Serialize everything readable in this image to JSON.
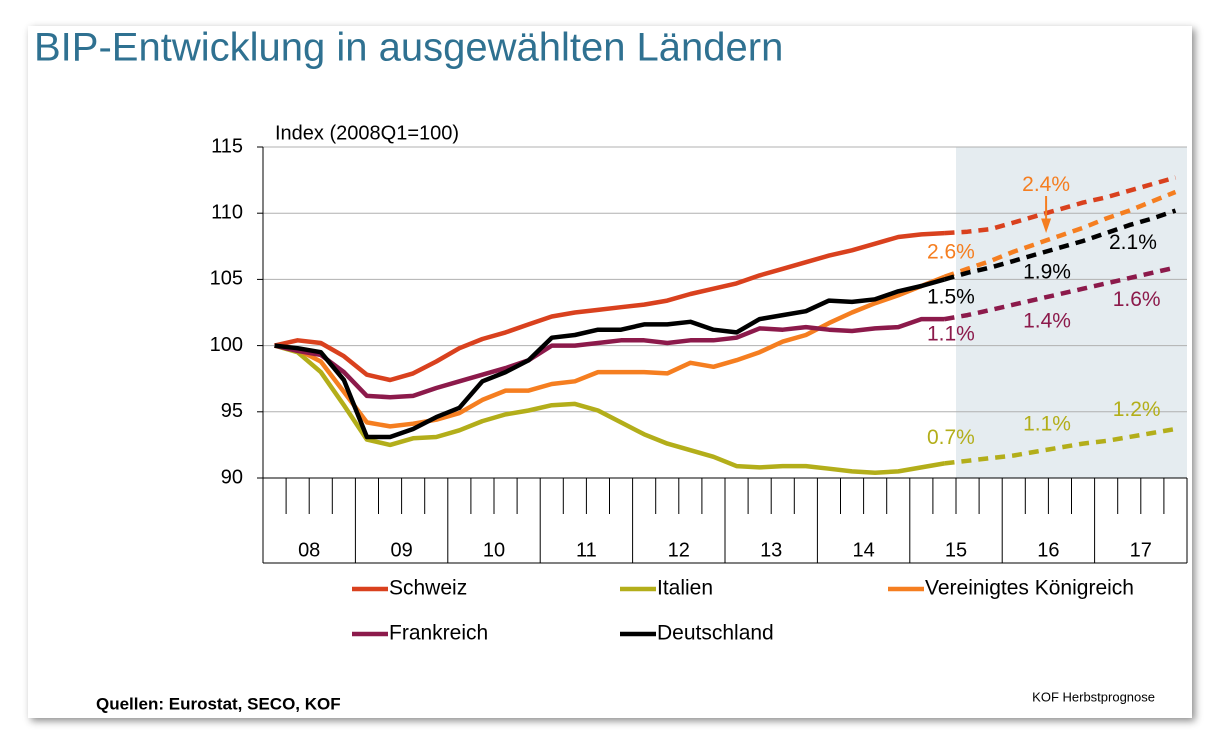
{
  "chart_data": {
    "type": "line",
    "title": "BIP-Entwicklung in ausgewählten Ländern",
    "y_label": "Index (2008Q1=100)",
    "source": "Quellen: Eurostat, SECO, KOF",
    "footer": "KOF Herbstprognose",
    "x": [
      2008,
      2008.25,
      2008.5,
      2008.75,
      2009,
      2009.25,
      2009.5,
      2009.75,
      2010,
      2010.25,
      2010.5,
      2010.75,
      2011,
      2011.25,
      2011.5,
      2011.75,
      2012,
      2012.25,
      2012.5,
      2012.75,
      2013,
      2013.25,
      2013.5,
      2013.75,
      2014,
      2014.25,
      2014.5,
      2014.75,
      2015,
      2015.25,
      2015.5,
      2015.75,
      2016,
      2016.25,
      2016.5,
      2016.75,
      2017,
      2017.25,
      2017.5,
      2017.75
    ],
    "xlim": [
      2007.875,
      2017.875
    ],
    "xticks": [
      {
        "value": 2008.375,
        "label": "08"
      },
      {
        "value": 2009.375,
        "label": "09"
      },
      {
        "value": 2010.375,
        "label": "10"
      },
      {
        "value": 2011.375,
        "label": "11"
      },
      {
        "value": 2012.375,
        "label": "12"
      },
      {
        "value": 2013.375,
        "label": "13"
      },
      {
        "value": 2014.375,
        "label": "14"
      },
      {
        "value": 2015.375,
        "label": "15"
      },
      {
        "value": 2016.375,
        "label": "16"
      },
      {
        "value": 2017.375,
        "label": "17"
      }
    ],
    "ylim": [
      90,
      115
    ],
    "yticks": [
      90,
      95,
      100,
      105,
      110,
      115
    ],
    "grid": true,
    "forecast_from": 2015.25,
    "series": [
      {
        "name": "Schweiz",
        "color": "#d9411e",
        "values": [
          100,
          100.4,
          100.2,
          99.2,
          97.8,
          97.4,
          97.9,
          98.8,
          99.8,
          100.5,
          101.0,
          101.6,
          102.2,
          102.5,
          102.7,
          102.9,
          103.1,
          103.4,
          103.9,
          104.3,
          104.7,
          105.3,
          105.8,
          106.3,
          106.8,
          107.2,
          107.7,
          108.2,
          108.4,
          108.5,
          108.6,
          108.8,
          109.3,
          109.8,
          110.3,
          110.8,
          111.2,
          111.7,
          112.2,
          112.7
        ]
      },
      {
        "name": "Italien",
        "color": "#b3ae1a",
        "values": [
          100,
          99.5,
          98.0,
          95.5,
          92.9,
          92.5,
          93.0,
          93.1,
          93.6,
          94.3,
          94.8,
          95.1,
          95.5,
          95.6,
          95.1,
          94.2,
          93.3,
          92.6,
          92.1,
          91.6,
          90.9,
          90.8,
          90.9,
          90.9,
          90.7,
          90.5,
          90.4,
          90.5,
          90.8,
          91.1,
          91.3,
          91.5,
          91.7,
          92.0,
          92.3,
          92.6,
          92.8,
          93.1,
          93.4,
          93.7
        ]
      },
      {
        "name": "Vereinigtes Königreich",
        "color": "#f57e20",
        "values": [
          100,
          99.7,
          98.8,
          96.5,
          94.2,
          93.9,
          94.1,
          94.4,
          94.9,
          95.9,
          96.6,
          96.6,
          97.1,
          97.3,
          98.0,
          98.0,
          98.0,
          97.9,
          98.7,
          98.4,
          98.9,
          99.5,
          100.3,
          100.8,
          101.7,
          102.5,
          103.2,
          103.8,
          104.5,
          105.2,
          105.8,
          106.4,
          107.1,
          107.7,
          108.3,
          108.9,
          109.6,
          110.2,
          110.9,
          111.6
        ]
      },
      {
        "name": "Frankreich",
        "color": "#8c1a4b",
        "values": [
          100,
          99.6,
          99.3,
          98.0,
          96.2,
          96.1,
          96.2,
          96.8,
          97.3,
          97.8,
          98.3,
          98.9,
          100.0,
          100.0,
          100.2,
          100.4,
          100.4,
          100.2,
          100.4,
          100.4,
          100.6,
          101.3,
          101.2,
          101.4,
          101.2,
          101.1,
          101.3,
          101.4,
          102.0,
          102.0,
          102.3,
          102.7,
          103.1,
          103.5,
          103.9,
          104.3,
          104.7,
          105.1,
          105.5,
          105.9
        ]
      },
      {
        "name": "Deutschland",
        "color": "#000000",
        "values": [
          100,
          99.8,
          99.5,
          97.4,
          93.1,
          93.1,
          93.7,
          94.6,
          95.3,
          97.3,
          98.0,
          98.9,
          100.6,
          100.8,
          101.2,
          101.2,
          101.6,
          101.6,
          101.8,
          101.2,
          101.0,
          102.0,
          102.3,
          102.6,
          103.4,
          103.3,
          103.5,
          104.1,
          104.5,
          105.0,
          105.5,
          105.9,
          106.4,
          106.9,
          107.4,
          107.9,
          108.5,
          109.1,
          109.6,
          110.2
        ]
      }
    ],
    "annotations": [
      {
        "text": "2.4%",
        "x": 2016.35,
        "y": 112.1,
        "color": "#f57e20"
      },
      {
        "text": "2.6%",
        "x": 2015.32,
        "y": 107.0,
        "color": "#f57e20"
      },
      {
        "text": "1.5%",
        "x": 2015.32,
        "y": 103.6,
        "color": "#000000"
      },
      {
        "text": "1.1%",
        "x": 2015.32,
        "y": 100.8,
        "color": "#8c1a4b"
      },
      {
        "text": "0.7%",
        "x": 2015.32,
        "y": 93.0,
        "color": "#b3ae1a"
      },
      {
        "text": "1.9%",
        "x": 2016.36,
        "y": 105.5,
        "color": "#000000"
      },
      {
        "text": "1.4%",
        "x": 2016.36,
        "y": 101.8,
        "color": "#8c1a4b"
      },
      {
        "text": "1.1%",
        "x": 2016.36,
        "y": 94.0,
        "color": "#b3ae1a"
      },
      {
        "text": "2.1%",
        "x": 2017.29,
        "y": 107.7,
        "color": "#000000"
      },
      {
        "text": "1.6%",
        "x": 2017.33,
        "y": 103.4,
        "color": "#8c1a4b"
      },
      {
        "text": "1.2%",
        "x": 2017.33,
        "y": 95.1,
        "color": "#b3ae1a"
      }
    ]
  }
}
